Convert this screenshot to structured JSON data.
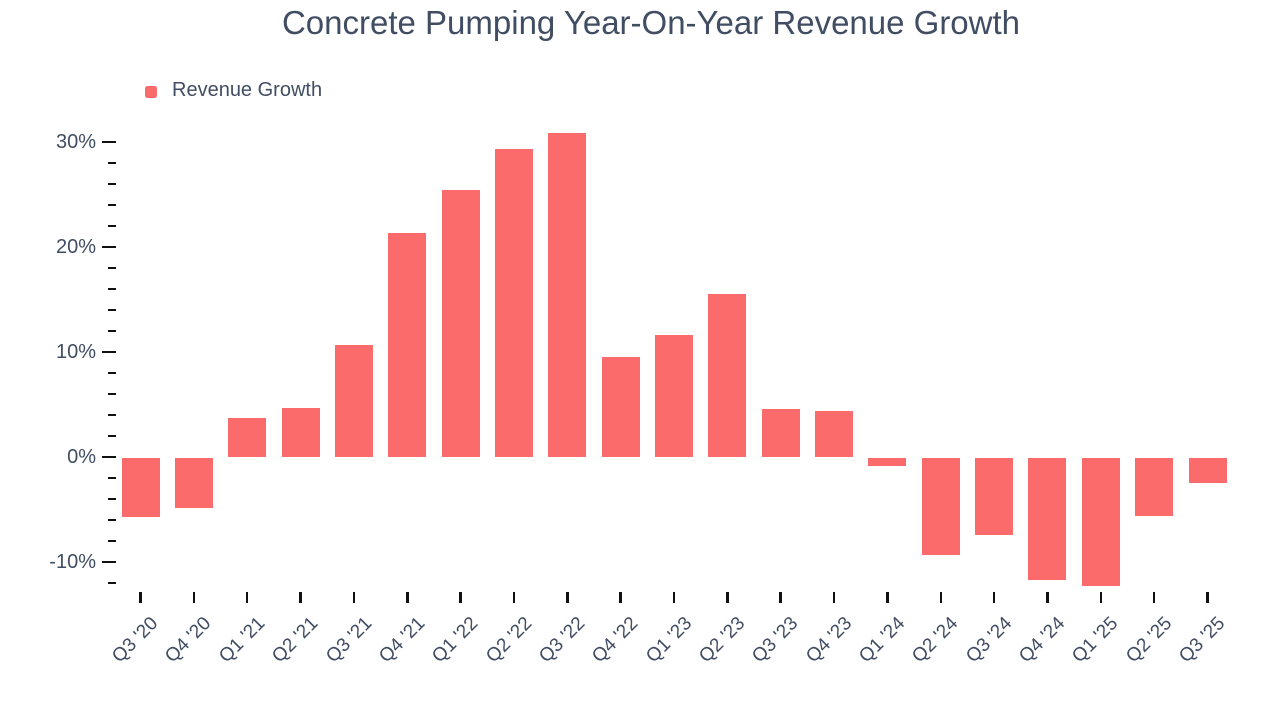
{
  "title": "Concrete Pumping Year-On-Year Revenue Growth",
  "legend": {
    "label": "Revenue Growth"
  },
  "colors": {
    "bar": "#FC6B6C",
    "text": "#414D63",
    "tick": "#111111",
    "background": "#FFFFFF"
  },
  "chart_data": {
    "type": "bar",
    "title": "Concrete Pumping Year-On-Year Revenue Growth",
    "series_name": "Revenue Growth",
    "unit": "%",
    "categories": [
      "Q3 '20",
      "Q4 '20",
      "Q1 '21",
      "Q2 '21",
      "Q3 '21",
      "Q4 '21",
      "Q1 '22",
      "Q2 '22",
      "Q3 '22",
      "Q4 '22",
      "Q1 '23",
      "Q2 '23",
      "Q3 '23",
      "Q4 '23",
      "Q1 '24",
      "Q2 '24",
      "Q3 '24",
      "Q4 '24",
      "Q1 '25",
      "Q2 '25",
      "Q3 '25"
    ],
    "values": [
      -5.6,
      -4.8,
      3.7,
      4.7,
      10.7,
      21.3,
      25.4,
      29.3,
      30.9,
      9.5,
      11.6,
      15.5,
      4.6,
      4.4,
      -0.8,
      -9.2,
      -7.3,
      -11.6,
      -12.2,
      -5.5,
      -2.4
    ],
    "xlabel": "",
    "ylabel": "",
    "ylim": [
      -13,
      32
    ],
    "ytick_major": [
      30,
      20,
      10,
      0,
      -10
    ],
    "ytick_labels": [
      "30%",
      "20%",
      "10%",
      "0%",
      "-10%"
    ],
    "ytick_minor_step": 2,
    "grid": false,
    "legend_position": "top-left"
  }
}
